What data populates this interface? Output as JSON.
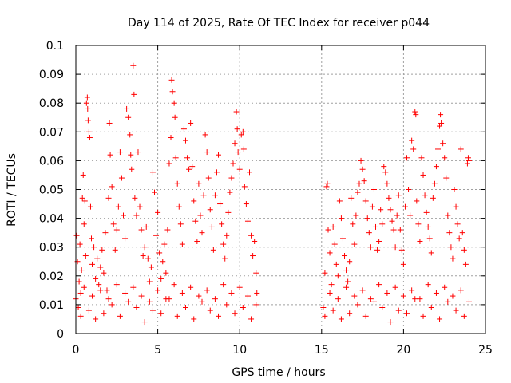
{
  "chart_data": {
    "type": "scatter",
    "title": "Day 114 of 2025, Rate Of TEC Index for receiver p044",
    "xlabel": "GPS time / hours",
    "ylabel": "ROTI / TECUs",
    "xlim": [
      0,
      25
    ],
    "ylim": [
      0,
      0.1
    ],
    "x_ticks": [
      0,
      5,
      10,
      15,
      20,
      25
    ],
    "y_ticks": [
      0,
      0.01,
      0.02,
      0.03,
      0.04,
      0.05,
      0.06,
      0.07,
      0.08,
      0.09,
      0.1
    ],
    "x_tick_labels": [
      "0",
      "5",
      "10",
      "15",
      "20",
      "25"
    ],
    "y_tick_labels": [
      "0",
      "0.01",
      "0.02",
      "0.03",
      "0.04",
      "0.05",
      "0.06",
      "0.07",
      "0.08",
      "0.09",
      "0.1"
    ],
    "grid": true,
    "marker": "+",
    "color": "#ff0000",
    "series": [
      {
        "points": [
          [
            0.0,
            0.012
          ],
          [
            0.05,
            0.034
          ],
          [
            0.1,
            0.025
          ],
          [
            0.15,
            0.009
          ],
          [
            0.2,
            0.018
          ],
          [
            0.25,
            0.031
          ],
          [
            0.3,
            0.014
          ],
          [
            0.35,
            0.022
          ],
          [
            0.4,
            0.047
          ],
          [
            0.45,
            0.055
          ],
          [
            0.5,
            0.038
          ],
          [
            0.55,
            0.046
          ],
          [
            0.6,
            0.027
          ],
          [
            0.65,
            0.08
          ],
          [
            0.7,
            0.082
          ],
          [
            0.72,
            0.078
          ],
          [
            0.75,
            0.074
          ],
          [
            0.8,
            0.07
          ],
          [
            0.85,
            0.068
          ],
          [
            0.9,
            0.044
          ],
          [
            0.95,
            0.033
          ],
          [
            1.0,
            0.024
          ],
          [
            1.1,
            0.03
          ],
          [
            1.2,
            0.019
          ],
          [
            1.3,
            0.026
          ],
          [
            1.4,
            0.017
          ],
          [
            1.5,
            0.023
          ],
          [
            1.6,
            0.029
          ],
          [
            1.7,
            0.021
          ],
          [
            1.8,
            0.035
          ],
          [
            1.9,
            0.015
          ],
          [
            2.0,
            0.047
          ],
          [
            2.05,
            0.073
          ],
          [
            2.1,
            0.062
          ],
          [
            2.2,
            0.051
          ],
          [
            2.3,
            0.038
          ],
          [
            2.4,
            0.029
          ],
          [
            2.5,
            0.036
          ],
          [
            2.6,
            0.044
          ],
          [
            2.7,
            0.063
          ],
          [
            2.8,
            0.054
          ],
          [
            2.9,
            0.041
          ],
          [
            3.0,
            0.033
          ],
          [
            3.1,
            0.078
          ],
          [
            3.2,
            0.075
          ],
          [
            3.3,
            0.069
          ],
          [
            3.35,
            0.062
          ],
          [
            3.4,
            0.057
          ],
          [
            3.5,
            0.093
          ],
          [
            3.55,
            0.083
          ],
          [
            3.6,
            0.047
          ],
          [
            3.7,
            0.041
          ],
          [
            3.8,
            0.063
          ],
          [
            3.9,
            0.044
          ],
          [
            4.0,
            0.036
          ],
          [
            4.1,
            0.027
          ],
          [
            4.2,
            0.03
          ],
          [
            4.3,
            0.037
          ],
          [
            4.4,
            0.026
          ],
          [
            4.5,
            0.018
          ],
          [
            4.6,
            0.023
          ],
          [
            4.7,
            0.056
          ],
          [
            4.8,
            0.049
          ],
          [
            4.9,
            0.034
          ],
          [
            5.0,
            0.042
          ],
          [
            5.1,
            0.028
          ],
          [
            5.2,
            0.019
          ],
          [
            5.3,
            0.025
          ],
          [
            5.4,
            0.031
          ],
          [
            5.5,
            0.021
          ],
          [
            5.6,
            0.036
          ],
          [
            5.7,
            0.059
          ],
          [
            5.8,
            0.068
          ],
          [
            5.85,
            0.088
          ],
          [
            5.9,
            0.084
          ],
          [
            6.0,
            0.08
          ],
          [
            6.05,
            0.075
          ],
          [
            6.1,
            0.061
          ],
          [
            6.2,
            0.052
          ],
          [
            6.3,
            0.044
          ],
          [
            6.4,
            0.038
          ],
          [
            6.5,
            0.031
          ],
          [
            6.6,
            0.071
          ],
          [
            6.7,
            0.067
          ],
          [
            6.8,
            0.061
          ],
          [
            6.9,
            0.057
          ],
          [
            7.0,
            0.073
          ],
          [
            7.1,
            0.058
          ],
          [
            7.2,
            0.046
          ],
          [
            7.3,
            0.039
          ],
          [
            7.4,
            0.032
          ],
          [
            7.5,
            0.052
          ],
          [
            7.6,
            0.041
          ],
          [
            7.7,
            0.035
          ],
          [
            7.8,
            0.048
          ],
          [
            7.9,
            0.069
          ],
          [
            8.0,
            0.063
          ],
          [
            8.1,
            0.054
          ],
          [
            8.2,
            0.043
          ],
          [
            8.3,
            0.037
          ],
          [
            8.4,
            0.029
          ],
          [
            8.5,
            0.048
          ],
          [
            8.6,
            0.056
          ],
          [
            8.7,
            0.062
          ],
          [
            8.8,
            0.045
          ],
          [
            8.9,
            0.038
          ],
          [
            9.0,
            0.031
          ],
          [
            9.1,
            0.026
          ],
          [
            9.2,
            0.034
          ],
          [
            9.3,
            0.042
          ],
          [
            9.4,
            0.049
          ],
          [
            9.5,
            0.054
          ],
          [
            9.6,
            0.059
          ],
          [
            9.7,
            0.066
          ],
          [
            9.8,
            0.077
          ],
          [
            9.85,
            0.071
          ],
          [
            9.9,
            0.063
          ],
          [
            10.0,
            0.057
          ],
          [
            10.1,
            0.069
          ],
          [
            10.2,
            0.07
          ],
          [
            10.25,
            0.064
          ],
          [
            10.3,
            0.051
          ],
          [
            10.4,
            0.045
          ],
          [
            10.5,
            0.039
          ],
          [
            10.6,
            0.056
          ],
          [
            10.7,
            0.034
          ],
          [
            10.8,
            0.027
          ],
          [
            10.9,
            0.032
          ],
          [
            11.0,
            0.021
          ],
          [
            11.05,
            0.014
          ],
          [
            0.3,
            0.006
          ],
          [
            0.8,
            0.008
          ],
          [
            1.2,
            0.005
          ],
          [
            1.7,
            0.007
          ],
          [
            2.2,
            0.01
          ],
          [
            2.7,
            0.006
          ],
          [
            3.2,
            0.011
          ],
          [
            3.7,
            0.009
          ],
          [
            4.2,
            0.004
          ],
          [
            4.7,
            0.008
          ],
          [
            5.2,
            0.007
          ],
          [
            5.7,
            0.012
          ],
          [
            6.2,
            0.006
          ],
          [
            6.7,
            0.009
          ],
          [
            7.2,
            0.005
          ],
          [
            7.7,
            0.011
          ],
          [
            8.2,
            0.008
          ],
          [
            8.7,
            0.006
          ],
          [
            9.2,
            0.01
          ],
          [
            9.7,
            0.007
          ],
          [
            10.2,
            0.009
          ],
          [
            10.7,
            0.005
          ],
          [
            0.5,
            0.016
          ],
          [
            1.0,
            0.013
          ],
          [
            1.5,
            0.015
          ],
          [
            2.0,
            0.012
          ],
          [
            2.5,
            0.017
          ],
          [
            3.0,
            0.014
          ],
          [
            3.5,
            0.016
          ],
          [
            4.0,
            0.013
          ],
          [
            4.5,
            0.011
          ],
          [
            5.0,
            0.015
          ],
          [
            5.5,
            0.012
          ],
          [
            6.0,
            0.017
          ],
          [
            6.5,
            0.014
          ],
          [
            7.0,
            0.016
          ],
          [
            7.5,
            0.013
          ],
          [
            8.0,
            0.015
          ],
          [
            8.5,
            0.012
          ],
          [
            9.0,
            0.017
          ],
          [
            9.5,
            0.014
          ],
          [
            10.0,
            0.016
          ],
          [
            10.5,
            0.013
          ],
          [
            11.0,
            0.01
          ],
          [
            15.1,
            0.009
          ],
          [
            15.2,
            0.021
          ],
          [
            15.3,
            0.051
          ],
          [
            15.35,
            0.052
          ],
          [
            15.4,
            0.036
          ],
          [
            15.5,
            0.028
          ],
          [
            15.6,
            0.017
          ],
          [
            15.7,
            0.037
          ],
          [
            15.8,
            0.031
          ],
          [
            15.9,
            0.024
          ],
          [
            16.0,
            0.02
          ],
          [
            16.1,
            0.046
          ],
          [
            16.2,
            0.04
          ],
          [
            16.3,
            0.033
          ],
          [
            16.4,
            0.027
          ],
          [
            16.5,
            0.022
          ],
          [
            16.6,
            0.018
          ],
          [
            16.7,
            0.025
          ],
          [
            16.8,
            0.047
          ],
          [
            16.9,
            0.038
          ],
          [
            17.0,
            0.031
          ],
          [
            17.1,
            0.041
          ],
          [
            17.2,
            0.049
          ],
          [
            17.3,
            0.052
          ],
          [
            17.4,
            0.06
          ],
          [
            17.5,
            0.057
          ],
          [
            17.6,
            0.053
          ],
          [
            17.7,
            0.046
          ],
          [
            17.8,
            0.04
          ],
          [
            17.9,
            0.035
          ],
          [
            18.0,
            0.03
          ],
          [
            18.1,
            0.044
          ],
          [
            18.2,
            0.05
          ],
          [
            18.3,
            0.037
          ],
          [
            18.4,
            0.029
          ],
          [
            18.5,
            0.032
          ],
          [
            18.6,
            0.043
          ],
          [
            18.7,
            0.038
          ],
          [
            18.8,
            0.058
          ],
          [
            18.9,
            0.056
          ],
          [
            19.0,
            0.052
          ],
          [
            19.1,
            0.047
          ],
          [
            19.2,
            0.043
          ],
          [
            19.3,
            0.039
          ],
          [
            19.4,
            0.036
          ],
          [
            19.5,
            0.03
          ],
          [
            19.6,
            0.041
          ],
          [
            19.7,
            0.048
          ],
          [
            19.8,
            0.036
          ],
          [
            19.9,
            0.029
          ],
          [
            20.0,
            0.024
          ],
          [
            20.1,
            0.044
          ],
          [
            20.2,
            0.061
          ],
          [
            20.3,
            0.05
          ],
          [
            20.4,
            0.041
          ],
          [
            20.5,
            0.067
          ],
          [
            20.6,
            0.064
          ],
          [
            20.7,
            0.077
          ],
          [
            20.75,
            0.076
          ],
          [
            20.8,
            0.046
          ],
          [
            20.9,
            0.038
          ],
          [
            21.0,
            0.032
          ],
          [
            21.1,
            0.061
          ],
          [
            21.2,
            0.055
          ],
          [
            21.3,
            0.048
          ],
          [
            21.4,
            0.042
          ],
          [
            21.5,
            0.037
          ],
          [
            21.6,
            0.033
          ],
          [
            21.7,
            0.028
          ],
          [
            21.8,
            0.047
          ],
          [
            21.9,
            0.052
          ],
          [
            22.0,
            0.058
          ],
          [
            22.1,
            0.064
          ],
          [
            22.2,
            0.072
          ],
          [
            22.25,
            0.076
          ],
          [
            22.3,
            0.073
          ],
          [
            22.4,
            0.066
          ],
          [
            22.5,
            0.061
          ],
          [
            22.6,
            0.054
          ],
          [
            22.7,
            0.041
          ],
          [
            22.8,
            0.035
          ],
          [
            22.9,
            0.03
          ],
          [
            23.0,
            0.026
          ],
          [
            23.1,
            0.05
          ],
          [
            23.2,
            0.044
          ],
          [
            23.3,
            0.038
          ],
          [
            23.4,
            0.033
          ],
          [
            23.5,
            0.064
          ],
          [
            23.6,
            0.035
          ],
          [
            23.7,
            0.029
          ],
          [
            23.8,
            0.024
          ],
          [
            23.9,
            0.059
          ],
          [
            23.95,
            0.061
          ],
          [
            24.0,
            0.06
          ],
          [
            15.2,
            0.006
          ],
          [
            15.7,
            0.008
          ],
          [
            16.2,
            0.005
          ],
          [
            16.7,
            0.007
          ],
          [
            17.2,
            0.01
          ],
          [
            17.7,
            0.006
          ],
          [
            18.2,
            0.011
          ],
          [
            18.7,
            0.009
          ],
          [
            19.2,
            0.004
          ],
          [
            19.7,
            0.008
          ],
          [
            20.2,
            0.007
          ],
          [
            20.7,
            0.012
          ],
          [
            21.2,
            0.006
          ],
          [
            21.7,
            0.009
          ],
          [
            22.2,
            0.005
          ],
          [
            22.7,
            0.011
          ],
          [
            23.2,
            0.008
          ],
          [
            23.7,
            0.006
          ],
          [
            15.5,
            0.014
          ],
          [
            16.0,
            0.012
          ],
          [
            16.5,
            0.016
          ],
          [
            17.0,
            0.013
          ],
          [
            17.5,
            0.015
          ],
          [
            18.0,
            0.012
          ],
          [
            18.5,
            0.017
          ],
          [
            19.0,
            0.014
          ],
          [
            19.5,
            0.016
          ],
          [
            20.0,
            0.013
          ],
          [
            20.5,
            0.015
          ],
          [
            21.0,
            0.012
          ],
          [
            21.5,
            0.017
          ],
          [
            22.0,
            0.014
          ],
          [
            22.5,
            0.016
          ],
          [
            23.0,
            0.013
          ],
          [
            23.5,
            0.015
          ],
          [
            24.0,
            0.011
          ]
        ]
      }
    ]
  }
}
